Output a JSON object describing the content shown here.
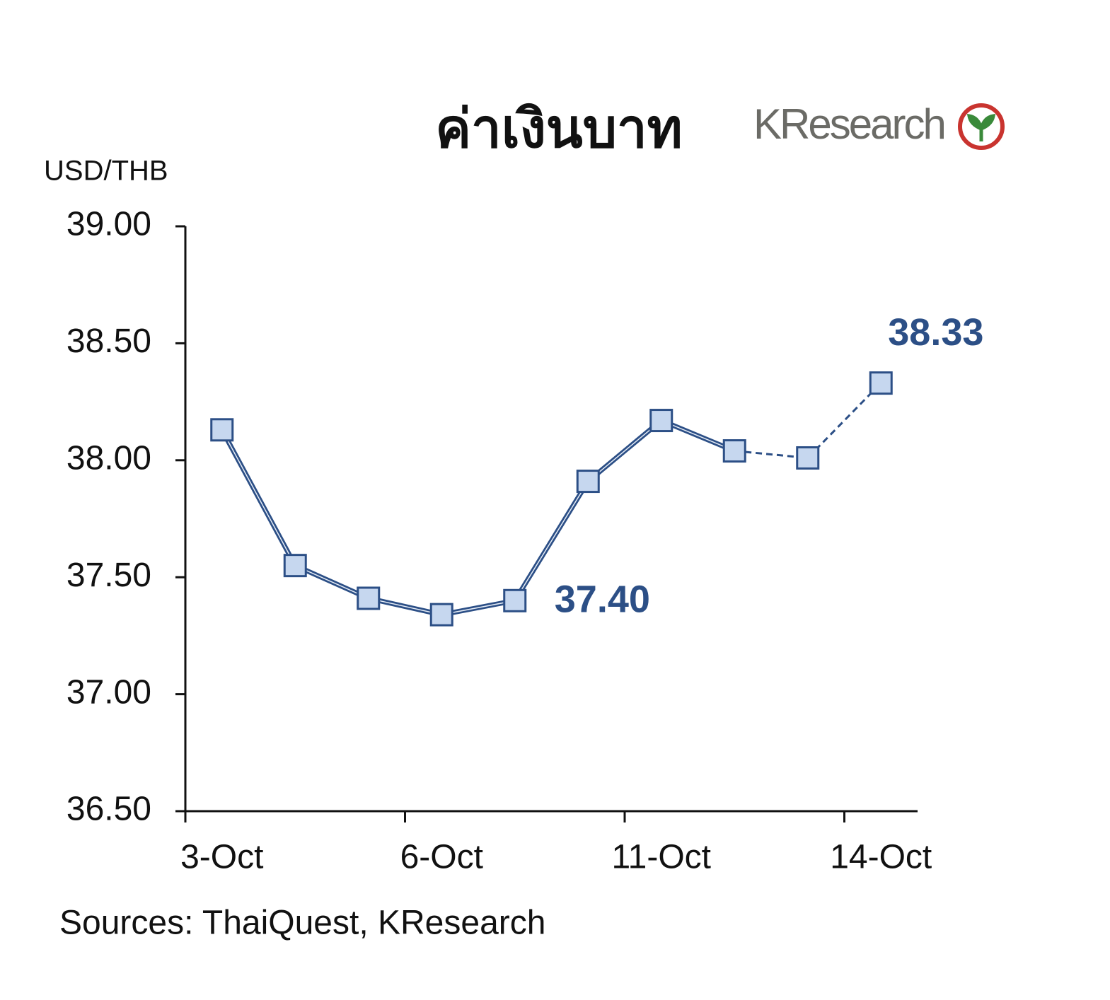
{
  "chart_data": {
    "type": "line",
    "title": "ค่าเงินบาท",
    "logo_text": "KResearch",
    "y_axis_label": "USD/THB",
    "source": "Sources: ThaiQuest, KResearch",
    "categories": [
      "3-Oct",
      null,
      null,
      "6-Oct",
      null,
      null,
      "11-Oct",
      null,
      null,
      "14-Oct"
    ],
    "values": [
      38.13,
      37.55,
      37.41,
      37.34,
      37.4,
      37.91,
      38.17,
      38.04,
      38.01,
      38.33
    ],
    "value_labels": [
      null,
      null,
      null,
      null,
      "37.40",
      null,
      null,
      null,
      null,
      "38.33"
    ],
    "dashed_from_index": 7,
    "color": "#2c4f86",
    "marker_fill": "#c6d7ef",
    "ylim": [
      36.5,
      39.0
    ],
    "yticks": [
      {
        "value": 36.5,
        "label": "36.50"
      },
      {
        "value": 37.0,
        "label": "37.00"
      },
      {
        "value": 37.5,
        "label": "37.50"
      },
      {
        "value": 38.0,
        "label": "38.00"
      },
      {
        "value": 38.5,
        "label": "38.50"
      },
      {
        "value": 39.0,
        "label": "39.00"
      }
    ],
    "grid": false
  }
}
